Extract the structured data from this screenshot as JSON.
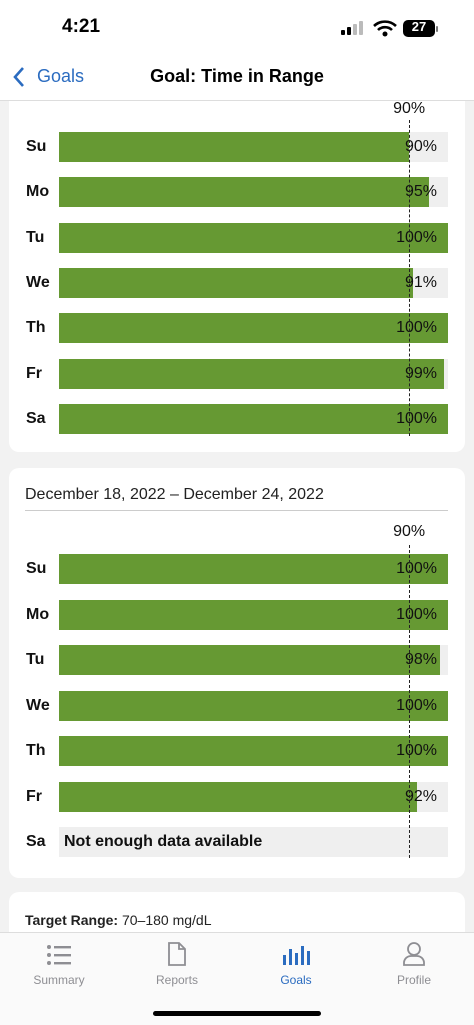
{
  "status_bar": {
    "time": "4:21",
    "battery": "27"
  },
  "nav": {
    "back": "Goals",
    "title": "Goal: Time in Range"
  },
  "weeks": [
    {
      "threshold": {
        "value": 90,
        "label": "90%"
      },
      "xlim": [
        0,
        100
      ],
      "days": [
        "Su",
        "Mo",
        "Tu",
        "We",
        "Th",
        "Fr",
        "Sa"
      ],
      "values": [
        90,
        95,
        100,
        91,
        100,
        99,
        100
      ],
      "value_labels": [
        "90%",
        "95%",
        "100%",
        "91%",
        "100%",
        "99%",
        "100%"
      ]
    },
    {
      "date_range": "December 18, 2022 – December 24, 2022",
      "threshold": {
        "value": 90,
        "label": "90%"
      },
      "xlim": [
        0,
        100
      ],
      "days": [
        "Su",
        "Mo",
        "Tu",
        "We",
        "Th",
        "Fr",
        "Sa"
      ],
      "values": [
        100,
        100,
        98,
        100,
        100,
        92,
        null
      ],
      "value_labels": [
        "100%",
        "100%",
        "98%",
        "100%",
        "100%",
        "92%",
        null
      ],
      "no_data_message": "Not enough data available"
    }
  ],
  "target_range": {
    "label": "Target Range:",
    "value": "70–180 mg/dL"
  },
  "tabs": [
    "Summary",
    "Reports",
    "Goals",
    "Profile"
  ]
}
